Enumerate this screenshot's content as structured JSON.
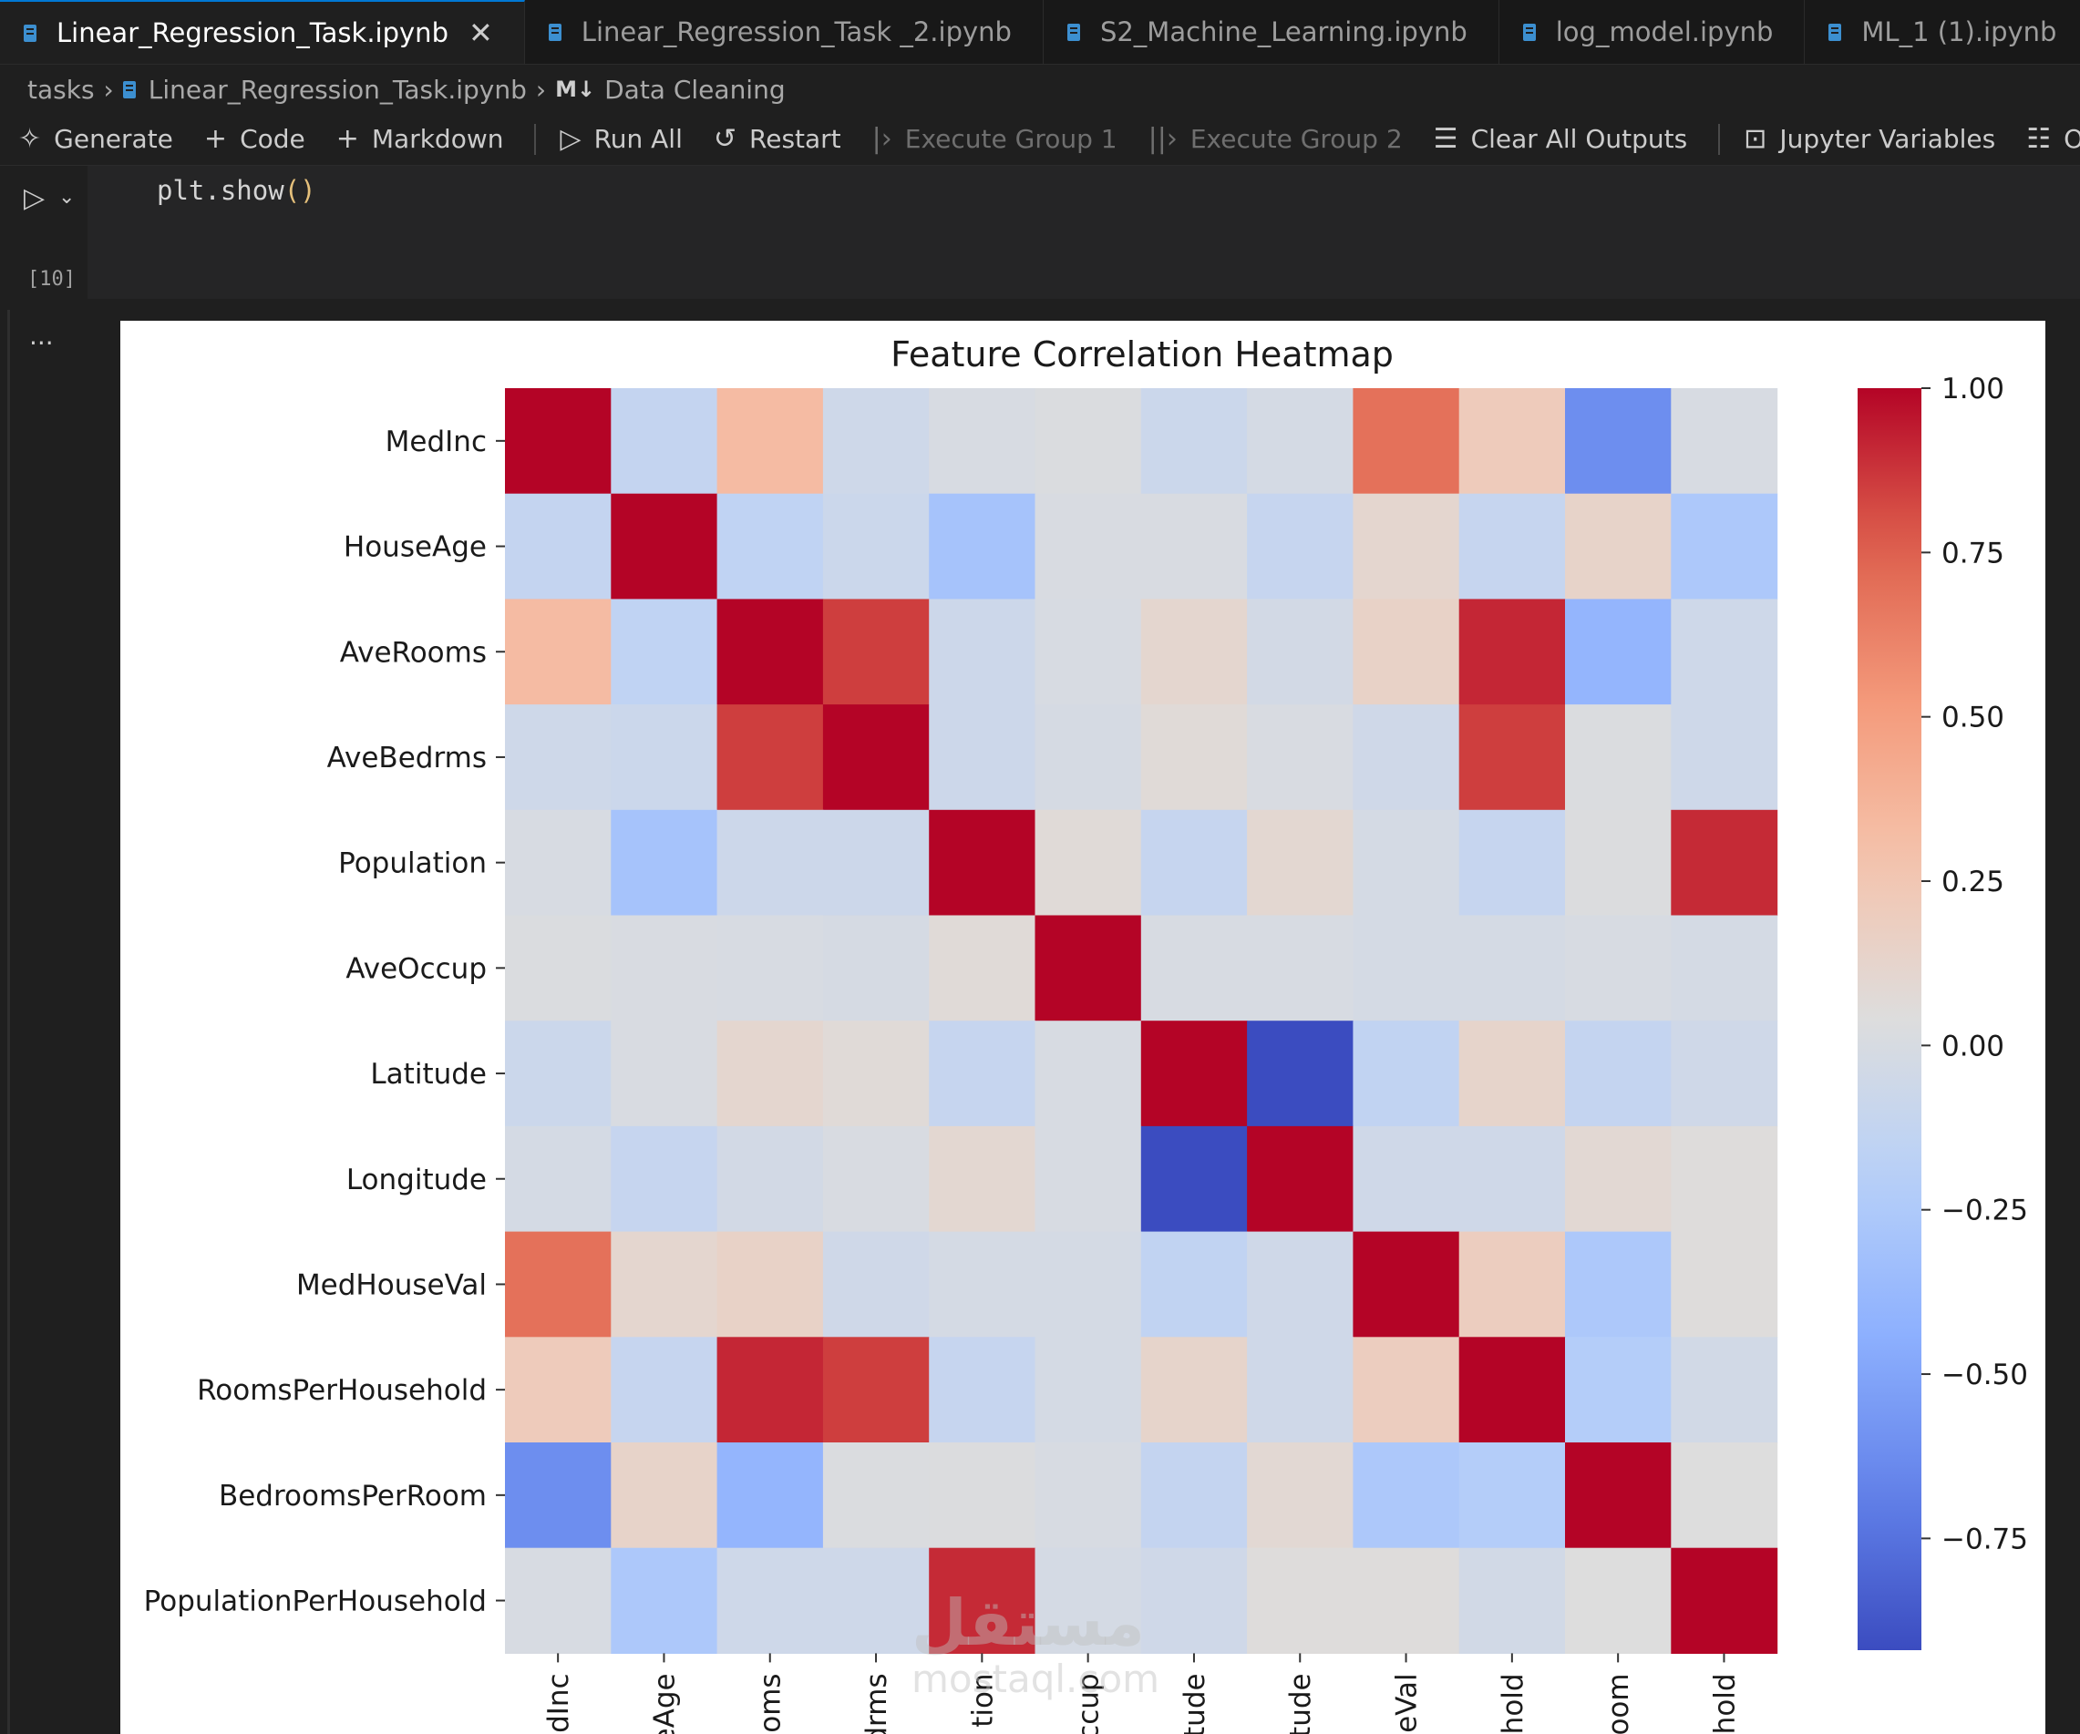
{
  "tabs": [
    {
      "label": "Linear_Regression_Task.ipynb",
      "active": true
    },
    {
      "label": "Linear_Regression_Task _2.ipynb",
      "active": false
    },
    {
      "label": "S2_Machine_Learning.ipynb",
      "active": false
    },
    {
      "label": "log_model.ipynb",
      "active": false
    },
    {
      "label": "ML_1 (1).ipynb",
      "active": false
    }
  ],
  "breadcrumb": {
    "folder": "tasks",
    "file": "Linear_Regression_Task.ipynb",
    "section_icon": "M↓",
    "section": "Data Cleaning"
  },
  "toolbar": {
    "generate": "Generate",
    "code": "Code",
    "markdown": "Markdown",
    "run_all": "Run All",
    "restart": "Restart",
    "execute_group_1": "Execute Group 1",
    "execute_group_2": "Execute Group 2",
    "clear_outputs": "Clear All Outputs",
    "jupyter_variables": "Jupyter Variables",
    "outline": "Outline"
  },
  "cell": {
    "code_fn": "plt.show",
    "code_parens": "()",
    "execution_count": "[10]",
    "output_menu": "..."
  },
  "watermark": {
    "main": "مستقل",
    "sub": "mostaql.com"
  },
  "colors": {
    "accent": "#0078d4",
    "background": "#1f1f1f",
    "figure_bg": "#ffffff"
  },
  "chart_data": {
    "type": "heatmap",
    "title": "Feature Correlation Heatmap",
    "colormap": "coolwarm",
    "rows": [
      "MedInc",
      "HouseAge",
      "AveRooms",
      "AveBedrms",
      "Population",
      "AveOccup",
      "Latitude",
      "Longitude",
      "MedHouseVal",
      "RoomsPerHousehold",
      "BedroomsPerRoom",
      "PopulationPerHousehold"
    ],
    "cols": [
      "MedInc",
      "HouseAge",
      "AveRooms",
      "AveBedrms",
      "Population",
      "AveOccup",
      "Latitude",
      "Longitude",
      "MedHouseVal",
      "RoomsPerHousehold",
      "BedroomsPerRoom",
      "PopulationPerHousehold"
    ],
    "x_tick_labels_visible": [
      "dInc",
      "eAge",
      "oms",
      "drms",
      "tion",
      "ccup",
      "tude",
      "tude",
      "eVal",
      "hold",
      "oom",
      "hold"
    ],
    "values": [
      [
        1.0,
        -0.12,
        0.33,
        -0.06,
        0.0,
        0.02,
        -0.08,
        -0.02,
        0.69,
        0.21,
        -0.62,
        0.0
      ],
      [
        -0.12,
        1.0,
        -0.15,
        -0.08,
        -0.3,
        0.01,
        0.01,
        -0.11,
        0.11,
        -0.11,
        0.14,
        -0.26
      ],
      [
        0.33,
        -0.15,
        1.0,
        0.85,
        -0.07,
        0.0,
        0.11,
        -0.03,
        0.15,
        0.91,
        -0.4,
        -0.06
      ],
      [
        -0.06,
        -0.08,
        0.85,
        1.0,
        -0.07,
        -0.01,
        0.07,
        0.01,
        -0.05,
        0.85,
        0.02,
        -0.06
      ],
      [
        0.0,
        -0.3,
        -0.07,
        -0.07,
        1.0,
        0.07,
        -0.11,
        0.1,
        -0.02,
        -0.11,
        0.03,
        0.9
      ],
      [
        0.02,
        0.01,
        0.0,
        -0.01,
        0.07,
        1.0,
        0.0,
        0.0,
        -0.02,
        -0.02,
        0.0,
        -0.02
      ],
      [
        -0.08,
        0.01,
        0.11,
        0.07,
        -0.11,
        0.0,
        1.0,
        -0.92,
        -0.14,
        0.13,
        -0.12,
        -0.05
      ],
      [
        -0.02,
        -0.11,
        -0.03,
        0.01,
        0.1,
        0.0,
        -0.92,
        1.0,
        -0.05,
        -0.05,
        0.09,
        0.05
      ],
      [
        0.69,
        0.11,
        0.15,
        -0.05,
        -0.02,
        -0.02,
        -0.14,
        -0.05,
        1.0,
        0.19,
        -0.26,
        0.05
      ],
      [
        0.21,
        -0.11,
        0.91,
        0.85,
        -0.11,
        -0.02,
        0.13,
        -0.05,
        0.19,
        1.0,
        -0.22,
        -0.04
      ],
      [
        -0.62,
        0.14,
        -0.4,
        0.02,
        0.03,
        0.0,
        -0.12,
        0.09,
        -0.26,
        -0.22,
        1.0,
        0.04
      ],
      [
        0.0,
        -0.26,
        -0.06,
        -0.06,
        0.9,
        -0.02,
        -0.05,
        0.05,
        0.05,
        -0.04,
        0.04,
        1.0
      ]
    ],
    "colorbar_ticks": [
      1.0,
      0.75,
      0.5,
      0.25,
      0.0,
      -0.25,
      -0.5,
      -0.75
    ],
    "colorbar_tick_labels": [
      "1.00",
      "0.75",
      "0.50",
      "0.25",
      "0.00",
      "−0.25",
      "−0.50",
      "−0.75"
    ],
    "vmin": -0.92,
    "vmax": 1.0
  }
}
